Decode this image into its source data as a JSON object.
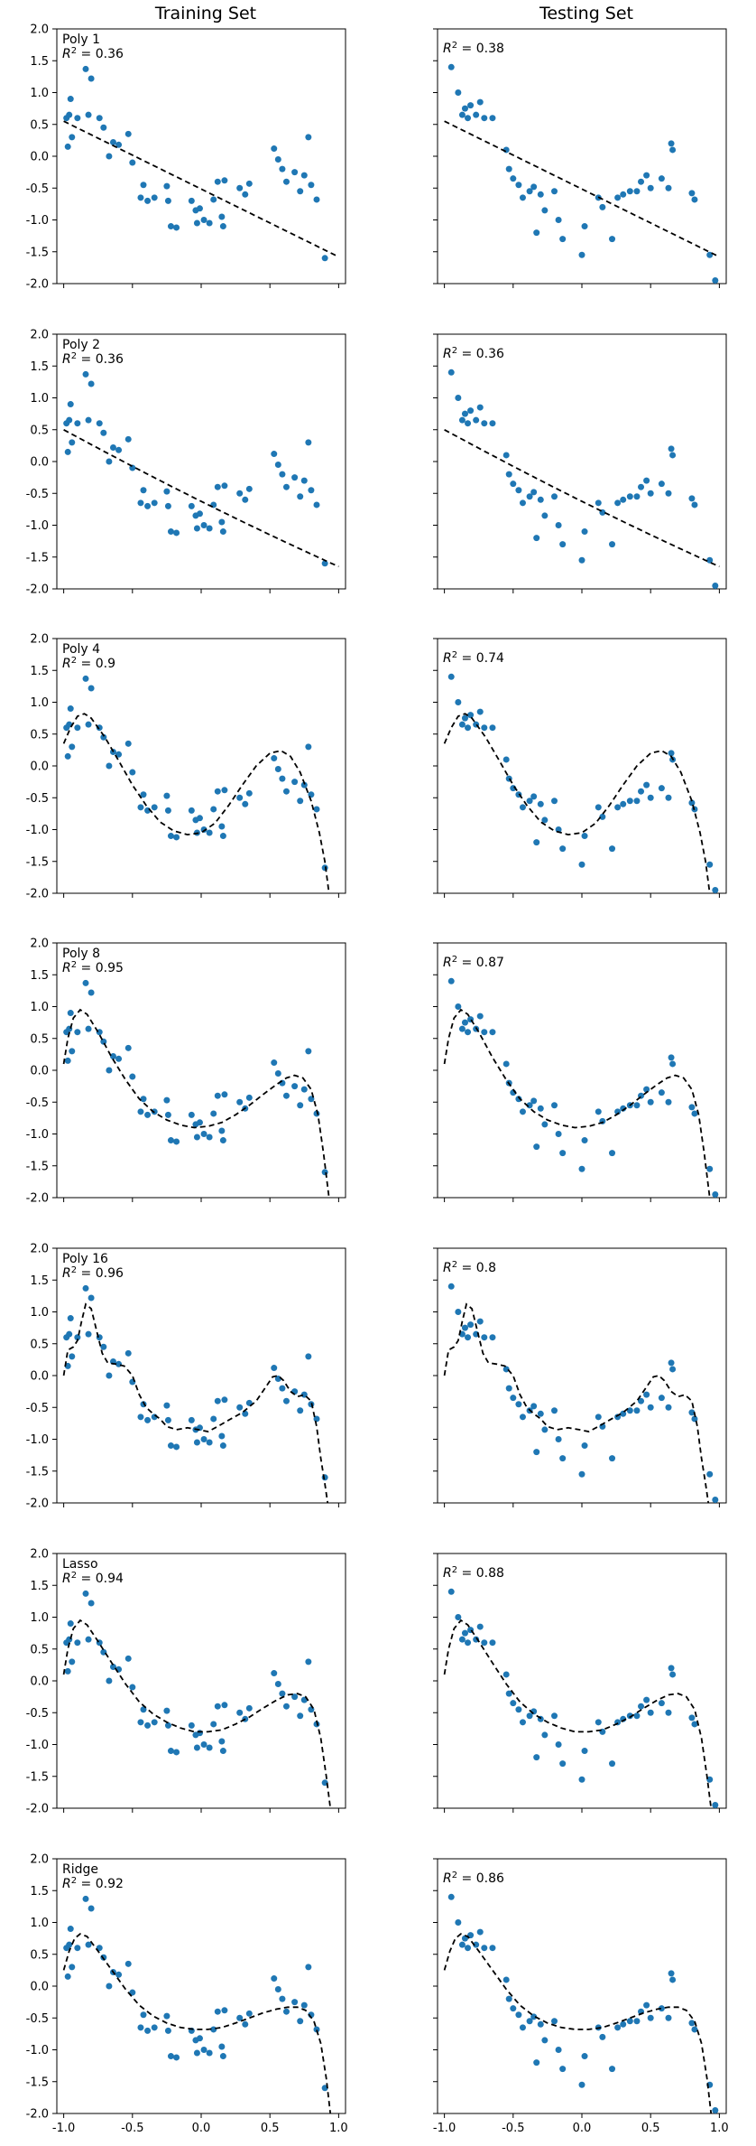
{
  "column_titles": [
    "Training Set",
    "Testing Set"
  ],
  "chart_data": [
    {
      "type": "scatter",
      "subplot": "Poly 1 / Training Set",
      "label": "Poly 1",
      "r2": "0.36",
      "xlim": [
        -1.0,
        1.0
      ],
      "ylim": [
        -2.0,
        2.0
      ],
      "yticks": [
        "2.0",
        "1.5",
        "1.0",
        "0.5",
        "0.0",
        "-0.5",
        "-1.0",
        "-1.5",
        "-2.0"
      ],
      "xticks": [
        "-1.0",
        "-0.5",
        "0.0",
        "0.5",
        "1.0"
      ],
      "degree": 1,
      "coef": [
        -0.5,
        -1.05
      ]
    },
    {
      "type": "scatter",
      "subplot": "Poly 1 / Testing Set",
      "label": "",
      "r2": "0.38",
      "xlim": [
        -1.0,
        1.0
      ],
      "ylim": [
        -2.0,
        2.0
      ],
      "xticks": [
        "-1.0",
        "-0.5",
        "0.0",
        "0.5",
        "1.0"
      ],
      "degree": 1,
      "coef": [
        -0.5,
        -1.05
      ]
    },
    {
      "type": "scatter",
      "subplot": "Poly 2 / Training Set",
      "label": "Poly 2",
      "r2": "0.36",
      "xlim": [
        -1.0,
        1.0
      ],
      "ylim": [
        -2.0,
        2.0
      ],
      "degree": 2,
      "coef": [
        -0.52,
        -1.05,
        -0.08
      ]
    },
    {
      "type": "scatter",
      "subplot": "Poly 2 / Testing Set",
      "label": "",
      "r2": "0.36",
      "xlim": [
        -1.0,
        1.0
      ],
      "ylim": [
        -2.0,
        2.0
      ],
      "degree": 2,
      "coef": [
        -0.52,
        -1.05,
        -0.08
      ]
    },
    {
      "type": "scatter",
      "subplot": "Poly 4 / Training Set",
      "label": "Poly 4",
      "r2": "0.9",
      "xlim": [
        -1.0,
        1.0
      ],
      "ylim": [
        -2.0,
        2.0
      ],
      "degree": 4
    },
    {
      "type": "scatter",
      "subplot": "Poly 4 / Testing Set",
      "label": "",
      "r2": "0.74",
      "xlim": [
        -1.0,
        1.0
      ],
      "ylim": [
        -2.0,
        2.0
      ],
      "degree": 4
    },
    {
      "type": "scatter",
      "subplot": "Poly 8 / Training Set",
      "label": "Poly 8",
      "r2": "0.95",
      "xlim": [
        -1.0,
        1.0
      ],
      "ylim": [
        -2.0,
        2.0
      ],
      "degree": 8
    },
    {
      "type": "scatter",
      "subplot": "Poly 8 / Testing Set",
      "label": "",
      "r2": "0.87",
      "xlim": [
        -1.0,
        1.0
      ],
      "ylim": [
        -2.0,
        2.0
      ],
      "degree": 8
    },
    {
      "type": "scatter",
      "subplot": "Poly 16 / Training Set",
      "label": "Poly 16",
      "r2": "0.96",
      "xlim": [
        -1.0,
        1.0
      ],
      "ylim": [
        -2.0,
        2.0
      ],
      "degree": 16
    },
    {
      "type": "scatter",
      "subplot": "Poly 16 / Testing Set",
      "label": "",
      "r2": "0.8",
      "xlim": [
        -1.0,
        1.0
      ],
      "ylim": [
        -2.0,
        2.0
      ],
      "degree": 16
    },
    {
      "type": "scatter",
      "subplot": "Lasso / Training Set",
      "label": "Lasso",
      "r2": "0.94",
      "xlim": [
        -1.0,
        1.0
      ],
      "ylim": [
        -2.0,
        2.0
      ]
    },
    {
      "type": "scatter",
      "subplot": "Lasso / Testing Set",
      "label": "",
      "r2": "0.88",
      "xlim": [
        -1.0,
        1.0
      ],
      "ylim": [
        -2.0,
        2.0
      ]
    },
    {
      "type": "scatter",
      "subplot": "Ridge / Training Set",
      "label": "Ridge",
      "r2": "0.92",
      "xlim": [
        -1.0,
        1.0
      ],
      "ylim": [
        -2.0,
        2.0
      ]
    },
    {
      "type": "scatter",
      "subplot": "Ridge / Testing Set",
      "label": "",
      "r2": "0.86",
      "xlim": [
        -1.0,
        1.0
      ],
      "ylim": [
        -2.0,
        2.0
      ]
    }
  ],
  "train_points": [
    [
      -0.98,
      0.6
    ],
    [
      -0.97,
      0.15
    ],
    [
      -0.96,
      0.65
    ],
    [
      -0.95,
      0.9
    ],
    [
      -0.94,
      0.3
    ],
    [
      -0.9,
      0.6
    ],
    [
      -0.84,
      1.37
    ],
    [
      -0.8,
      1.22
    ],
    [
      -0.82,
      0.65
    ],
    [
      -0.74,
      0.6
    ],
    [
      -0.71,
      0.45
    ],
    [
      -0.67,
      0.0
    ],
    [
      -0.64,
      0.22
    ],
    [
      -0.6,
      0.18
    ],
    [
      -0.53,
      0.35
    ],
    [
      -0.5,
      -0.1
    ],
    [
      -0.44,
      -0.65
    ],
    [
      -0.42,
      -0.45
    ],
    [
      -0.39,
      -0.7
    ],
    [
      -0.34,
      -0.65
    ],
    [
      -0.25,
      -0.47
    ],
    [
      -0.24,
      -0.7
    ],
    [
      -0.22,
      -1.1
    ],
    [
      -0.18,
      -1.12
    ],
    [
      -0.07,
      -0.7
    ],
    [
      -0.04,
      -0.85
    ],
    [
      -0.03,
      -1.05
    ],
    [
      -0.01,
      -0.82
    ],
    [
      0.02,
      -1.0
    ],
    [
      0.06,
      -1.05
    ],
    [
      0.09,
      -0.68
    ],
    [
      0.12,
      -0.4
    ],
    [
      0.15,
      -0.95
    ],
    [
      0.16,
      -1.1
    ],
    [
      0.17,
      -0.38
    ],
    [
      0.28,
      -0.5
    ],
    [
      0.32,
      -0.6
    ],
    [
      0.35,
      -0.43
    ],
    [
      0.53,
      0.12
    ],
    [
      0.56,
      -0.05
    ],
    [
      0.59,
      -0.2
    ],
    [
      0.62,
      -0.4
    ],
    [
      0.68,
      -0.25
    ],
    [
      0.72,
      -0.55
    ],
    [
      0.75,
      -0.3
    ],
    [
      0.78,
      0.3
    ],
    [
      0.8,
      -0.45
    ],
    [
      0.84,
      -0.68
    ],
    [
      0.9,
      -1.6
    ]
  ],
  "test_points": [
    [
      -0.95,
      1.4
    ],
    [
      -0.9,
      1.0
    ],
    [
      -0.87,
      0.65
    ],
    [
      -0.85,
      0.75
    ],
    [
      -0.83,
      0.6
    ],
    [
      -0.81,
      0.8
    ],
    [
      -0.77,
      0.65
    ],
    [
      -0.74,
      0.85
    ],
    [
      -0.71,
      0.6
    ],
    [
      -0.65,
      0.6
    ],
    [
      -0.55,
      0.1
    ],
    [
      -0.53,
      -0.2
    ],
    [
      -0.5,
      -0.35
    ],
    [
      -0.46,
      -0.45
    ],
    [
      -0.43,
      -0.65
    ],
    [
      -0.38,
      -0.55
    ],
    [
      -0.35,
      -0.48
    ],
    [
      -0.33,
      -1.2
    ],
    [
      -0.3,
      -0.6
    ],
    [
      -0.27,
      -0.85
    ],
    [
      -0.2,
      -0.55
    ],
    [
      -0.17,
      -1.0
    ],
    [
      -0.14,
      -1.3
    ],
    [
      0.0,
      -1.55
    ],
    [
      0.02,
      -1.1
    ],
    [
      0.12,
      -0.65
    ],
    [
      0.15,
      -0.8
    ],
    [
      0.22,
      -1.3
    ],
    [
      0.26,
      -0.65
    ],
    [
      0.3,
      -0.6
    ],
    [
      0.35,
      -0.55
    ],
    [
      0.4,
      -0.55
    ],
    [
      0.43,
      -0.4
    ],
    [
      0.47,
      -0.3
    ],
    [
      0.5,
      -0.5
    ],
    [
      0.58,
      -0.35
    ],
    [
      0.63,
      -0.5
    ],
    [
      0.65,
      0.2
    ],
    [
      0.66,
      0.1
    ],
    [
      0.8,
      -0.58
    ],
    [
      0.82,
      -0.68
    ],
    [
      0.93,
      -1.55
    ],
    [
      0.97,
      -1.95
    ]
  ],
  "curves": {
    "poly4": [
      [
        -1.0,
        0.35
      ],
      [
        -0.95,
        0.6
      ],
      [
        -0.9,
        0.78
      ],
      [
        -0.85,
        0.82
      ],
      [
        -0.8,
        0.75
      ],
      [
        -0.7,
        0.45
      ],
      [
        -0.6,
        0.08
      ],
      [
        -0.5,
        -0.3
      ],
      [
        -0.4,
        -0.62
      ],
      [
        -0.3,
        -0.88
      ],
      [
        -0.2,
        -1.02
      ],
      [
        -0.1,
        -1.08
      ],
      [
        0.0,
        -1.05
      ],
      [
        0.1,
        -0.9
      ],
      [
        0.2,
        -0.62
      ],
      [
        0.3,
        -0.3
      ],
      [
        0.4,
        0.0
      ],
      [
        0.5,
        0.2
      ],
      [
        0.58,
        0.24
      ],
      [
        0.65,
        0.15
      ],
      [
        0.72,
        -0.1
      ],
      [
        0.8,
        -0.55
      ],
      [
        0.86,
        -1.05
      ],
      [
        0.9,
        -1.5
      ],
      [
        0.93,
        -2.0
      ]
    ],
    "poly8": [
      [
        -1.0,
        0.1
      ],
      [
        -0.97,
        0.5
      ],
      [
        -0.93,
        0.82
      ],
      [
        -0.88,
        0.95
      ],
      [
        -0.83,
        0.88
      ],
      [
        -0.75,
        0.6
      ],
      [
        -0.65,
        0.2
      ],
      [
        -0.55,
        -0.15
      ],
      [
        -0.45,
        -0.45
      ],
      [
        -0.35,
        -0.65
      ],
      [
        -0.25,
        -0.78
      ],
      [
        -0.15,
        -0.86
      ],
      [
        -0.05,
        -0.9
      ],
      [
        0.05,
        -0.88
      ],
      [
        0.15,
        -0.82
      ],
      [
        0.25,
        -0.7
      ],
      [
        0.35,
        -0.55
      ],
      [
        0.45,
        -0.38
      ],
      [
        0.55,
        -0.22
      ],
      [
        0.62,
        -0.12
      ],
      [
        0.68,
        -0.08
      ],
      [
        0.74,
        -0.12
      ],
      [
        0.8,
        -0.3
      ],
      [
        0.85,
        -0.7
      ],
      [
        0.89,
        -1.3
      ],
      [
        0.93,
        -2.0
      ]
    ],
    "poly16": [
      [
        -1.0,
        0.0
      ],
      [
        -0.97,
        0.4
      ],
      [
        -0.93,
        0.45
      ],
      [
        -0.9,
        0.55
      ],
      [
        -0.87,
        0.85
      ],
      [
        -0.84,
        1.12
      ],
      [
        -0.8,
        1.05
      ],
      [
        -0.76,
        0.7
      ],
      [
        -0.72,
        0.35
      ],
      [
        -0.68,
        0.2
      ],
      [
        -0.62,
        0.18
      ],
      [
        -0.56,
        0.15
      ],
      [
        -0.5,
        0.0
      ],
      [
        -0.45,
        -0.3
      ],
      [
        -0.4,
        -0.5
      ],
      [
        -0.35,
        -0.6
      ],
      [
        -0.3,
        -0.68
      ],
      [
        -0.25,
        -0.8
      ],
      [
        -0.18,
        -0.85
      ],
      [
        -0.1,
        -0.82
      ],
      [
        -0.02,
        -0.85
      ],
      [
        0.05,
        -0.88
      ],
      [
        0.12,
        -0.8
      ],
      [
        0.2,
        -0.7
      ],
      [
        0.3,
        -0.58
      ],
      [
        0.4,
        -0.4
      ],
      [
        0.47,
        -0.18
      ],
      [
        0.52,
        -0.02
      ],
      [
        0.56,
        0.0
      ],
      [
        0.6,
        -0.08
      ],
      [
        0.65,
        -0.25
      ],
      [
        0.7,
        -0.33
      ],
      [
        0.75,
        -0.3
      ],
      [
        0.8,
        -0.4
      ],
      [
        0.84,
        -0.8
      ],
      [
        0.87,
        -1.3
      ],
      [
        0.9,
        -1.7
      ],
      [
        0.92,
        -2.0
      ]
    ],
    "lasso": [
      [
        -1.0,
        0.1
      ],
      [
        -0.97,
        0.5
      ],
      [
        -0.93,
        0.82
      ],
      [
        -0.88,
        0.95
      ],
      [
        -0.83,
        0.88
      ],
      [
        -0.75,
        0.62
      ],
      [
        -0.65,
        0.28
      ],
      [
        -0.55,
        -0.05
      ],
      [
        -0.45,
        -0.33
      ],
      [
        -0.35,
        -0.52
      ],
      [
        -0.25,
        -0.65
      ],
      [
        -0.15,
        -0.74
      ],
      [
        -0.05,
        -0.8
      ],
      [
        0.05,
        -0.8
      ],
      [
        0.15,
        -0.77
      ],
      [
        0.25,
        -0.68
      ],
      [
        0.35,
        -0.57
      ],
      [
        0.45,
        -0.43
      ],
      [
        0.55,
        -0.3
      ],
      [
        0.63,
        -0.22
      ],
      [
        0.7,
        -0.2
      ],
      [
        0.76,
        -0.25
      ],
      [
        0.82,
        -0.45
      ],
      [
        0.87,
        -0.9
      ],
      [
        0.91,
        -1.5
      ],
      [
        0.94,
        -2.0
      ]
    ],
    "ridge": [
      [
        -1.0,
        0.25
      ],
      [
        -0.96,
        0.55
      ],
      [
        -0.92,
        0.75
      ],
      [
        -0.88,
        0.82
      ],
      [
        -0.83,
        0.78
      ],
      [
        -0.75,
        0.55
      ],
      [
        -0.65,
        0.25
      ],
      [
        -0.55,
        -0.05
      ],
      [
        -0.45,
        -0.3
      ],
      [
        -0.35,
        -0.47
      ],
      [
        -0.25,
        -0.58
      ],
      [
        -0.15,
        -0.65
      ],
      [
        -0.05,
        -0.68
      ],
      [
        0.05,
        -0.68
      ],
      [
        0.15,
        -0.65
      ],
      [
        0.25,
        -0.58
      ],
      [
        0.35,
        -0.5
      ],
      [
        0.45,
        -0.42
      ],
      [
        0.55,
        -0.36
      ],
      [
        0.63,
        -0.33
      ],
      [
        0.7,
        -0.33
      ],
      [
        0.76,
        -0.38
      ],
      [
        0.82,
        -0.55
      ],
      [
        0.87,
        -0.9
      ],
      [
        0.91,
        -1.45
      ],
      [
        0.94,
        -2.0
      ]
    ]
  }
}
